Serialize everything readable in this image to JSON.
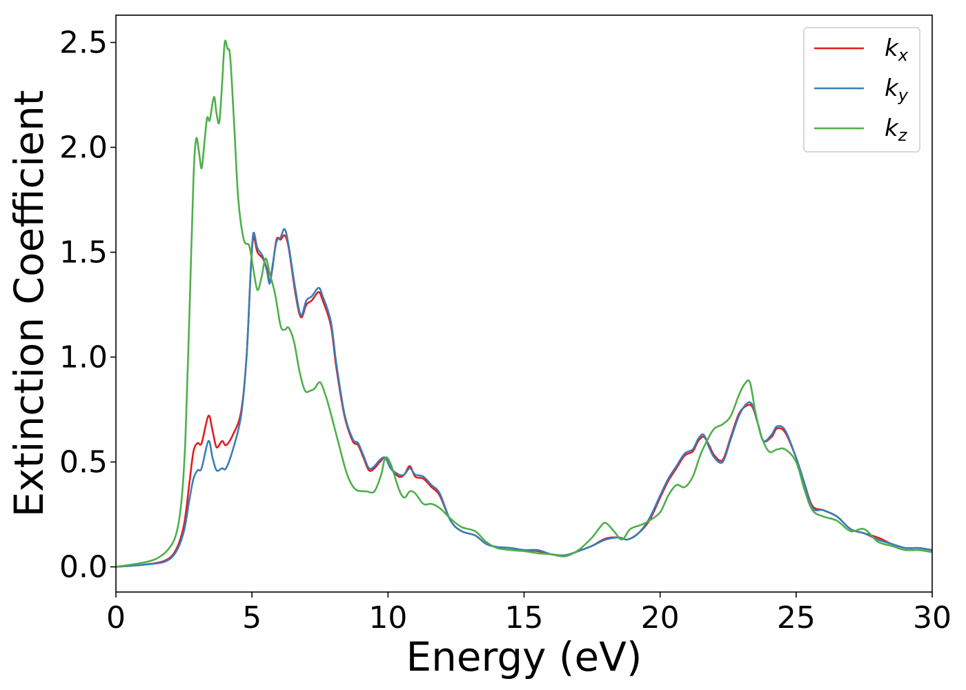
{
  "chart_data": {
    "type": "line",
    "xlabel": "Energy (eV)",
    "ylabel": "Extinction Coefficient",
    "xlim": [
      0,
      30
    ],
    "ylim": [
      -0.12,
      2.63
    ],
    "xticks": [
      0,
      5,
      10,
      15,
      20,
      25,
      30
    ],
    "xtick_labels": [
      "0",
      "5",
      "10",
      "15",
      "20",
      "25",
      "30"
    ],
    "yticks": [
      0.0,
      0.5,
      1.0,
      1.5,
      2.0,
      2.5
    ],
    "ytick_labels": [
      "0.0",
      "0.5",
      "1.0",
      "1.5",
      "2.0",
      "2.5"
    ],
    "grid": false,
    "legend_position": "top-right",
    "series": [
      {
        "name": "k_x",
        "legend_main": "k",
        "legend_sub": "x",
        "color": "#e41a1c",
        "points": [
          [
            0,
            0.0
          ],
          [
            1,
            0.01
          ],
          [
            1.8,
            0.03
          ],
          [
            2.2,
            0.08
          ],
          [
            2.5,
            0.2
          ],
          [
            2.7,
            0.4
          ],
          [
            2.85,
            0.55
          ],
          [
            3.0,
            0.59
          ],
          [
            3.15,
            0.59
          ],
          [
            3.4,
            0.72
          ],
          [
            3.55,
            0.65
          ],
          [
            3.7,
            0.57
          ],
          [
            3.9,
            0.6
          ],
          [
            4.05,
            0.58
          ],
          [
            4.3,
            0.63
          ],
          [
            4.6,
            0.74
          ],
          [
            4.8,
            1.0
          ],
          [
            4.95,
            1.4
          ],
          [
            5.05,
            1.57
          ],
          [
            5.2,
            1.5
          ],
          [
            5.4,
            1.47
          ],
          [
            5.55,
            1.42
          ],
          [
            5.65,
            1.36
          ],
          [
            5.75,
            1.42
          ],
          [
            5.9,
            1.56
          ],
          [
            6.05,
            1.56
          ],
          [
            6.2,
            1.58
          ],
          [
            6.35,
            1.52
          ],
          [
            6.6,
            1.3
          ],
          [
            6.8,
            1.19
          ],
          [
            7.0,
            1.25
          ],
          [
            7.2,
            1.27
          ],
          [
            7.45,
            1.31
          ],
          [
            7.6,
            1.27
          ],
          [
            7.9,
            1.15
          ],
          [
            8.1,
            0.95
          ],
          [
            8.4,
            0.72
          ],
          [
            8.7,
            0.6
          ],
          [
            8.9,
            0.58
          ],
          [
            9.1,
            0.52
          ],
          [
            9.3,
            0.46
          ],
          [
            9.5,
            0.47
          ],
          [
            9.7,
            0.5
          ],
          [
            9.9,
            0.52
          ],
          [
            10.1,
            0.47
          ],
          [
            10.4,
            0.43
          ],
          [
            10.6,
            0.44
          ],
          [
            10.8,
            0.48
          ],
          [
            11.0,
            0.43
          ],
          [
            11.3,
            0.42
          ],
          [
            11.6,
            0.38
          ],
          [
            11.9,
            0.34
          ],
          [
            12.3,
            0.22
          ],
          [
            12.7,
            0.17
          ],
          [
            13.2,
            0.15
          ],
          [
            13.6,
            0.11
          ],
          [
            14.0,
            0.095
          ],
          [
            14.5,
            0.09
          ],
          [
            15.0,
            0.08
          ],
          [
            15.5,
            0.075
          ],
          [
            16.0,
            0.06
          ],
          [
            16.5,
            0.055
          ],
          [
            17.0,
            0.075
          ],
          [
            17.5,
            0.1
          ],
          [
            18.0,
            0.135
          ],
          [
            18.5,
            0.14
          ],
          [
            18.8,
            0.13
          ],
          [
            19.2,
            0.16
          ],
          [
            19.6,
            0.22
          ],
          [
            20.0,
            0.33
          ],
          [
            20.3,
            0.41
          ],
          [
            20.6,
            0.47
          ],
          [
            20.9,
            0.53
          ],
          [
            21.2,
            0.55
          ],
          [
            21.4,
            0.6
          ],
          [
            21.6,
            0.62
          ],
          [
            21.8,
            0.58
          ],
          [
            22.0,
            0.53
          ],
          [
            22.3,
            0.51
          ],
          [
            22.6,
            0.62
          ],
          [
            22.9,
            0.73
          ],
          [
            23.2,
            0.77
          ],
          [
            23.4,
            0.76
          ],
          [
            23.6,
            0.68
          ],
          [
            23.8,
            0.6
          ],
          [
            24.1,
            0.62
          ],
          [
            24.3,
            0.66
          ],
          [
            24.6,
            0.64
          ],
          [
            25.0,
            0.52
          ],
          [
            25.3,
            0.4
          ],
          [
            25.6,
            0.29
          ],
          [
            26.0,
            0.27
          ],
          [
            26.5,
            0.24
          ],
          [
            27.0,
            0.18
          ],
          [
            27.5,
            0.16
          ],
          [
            28.0,
            0.14
          ],
          [
            28.5,
            0.11
          ],
          [
            29.0,
            0.09
          ],
          [
            29.5,
            0.09
          ],
          [
            30.0,
            0.08
          ]
        ]
      },
      {
        "name": "k_y",
        "legend_main": "k",
        "legend_sub": "y",
        "color": "#377eb8",
        "points": [
          [
            0,
            0.0
          ],
          [
            1,
            0.01
          ],
          [
            1.8,
            0.025
          ],
          [
            2.2,
            0.07
          ],
          [
            2.5,
            0.17
          ],
          [
            2.7,
            0.32
          ],
          [
            2.85,
            0.42
          ],
          [
            3.0,
            0.46
          ],
          [
            3.15,
            0.47
          ],
          [
            3.4,
            0.6
          ],
          [
            3.55,
            0.52
          ],
          [
            3.7,
            0.46
          ],
          [
            3.9,
            0.47
          ],
          [
            4.05,
            0.47
          ],
          [
            4.3,
            0.56
          ],
          [
            4.6,
            0.72
          ],
          [
            4.8,
            1.0
          ],
          [
            4.95,
            1.4
          ],
          [
            5.05,
            1.59
          ],
          [
            5.2,
            1.52
          ],
          [
            5.4,
            1.48
          ],
          [
            5.55,
            1.41
          ],
          [
            5.65,
            1.35
          ],
          [
            5.75,
            1.43
          ],
          [
            5.9,
            1.55
          ],
          [
            6.05,
            1.57
          ],
          [
            6.2,
            1.61
          ],
          [
            6.35,
            1.53
          ],
          [
            6.6,
            1.32
          ],
          [
            6.8,
            1.2
          ],
          [
            7.0,
            1.27
          ],
          [
            7.2,
            1.29
          ],
          [
            7.45,
            1.33
          ],
          [
            7.6,
            1.29
          ],
          [
            7.9,
            1.17
          ],
          [
            8.1,
            0.97
          ],
          [
            8.4,
            0.73
          ],
          [
            8.7,
            0.61
          ],
          [
            8.9,
            0.59
          ],
          [
            9.1,
            0.53
          ],
          [
            9.3,
            0.47
          ],
          [
            9.5,
            0.48
          ],
          [
            9.7,
            0.51
          ],
          [
            9.9,
            0.52
          ],
          [
            10.1,
            0.47
          ],
          [
            10.4,
            0.44
          ],
          [
            10.6,
            0.44
          ],
          [
            10.8,
            0.47
          ],
          [
            11.0,
            0.44
          ],
          [
            11.3,
            0.43
          ],
          [
            11.6,
            0.39
          ],
          [
            11.9,
            0.35
          ],
          [
            12.3,
            0.22
          ],
          [
            12.7,
            0.17
          ],
          [
            13.2,
            0.15
          ],
          [
            13.6,
            0.11
          ],
          [
            14.0,
            0.095
          ],
          [
            14.5,
            0.09
          ],
          [
            15.0,
            0.08
          ],
          [
            15.5,
            0.08
          ],
          [
            16.0,
            0.06
          ],
          [
            16.5,
            0.055
          ],
          [
            17.0,
            0.075
          ],
          [
            17.5,
            0.1
          ],
          [
            18.0,
            0.13
          ],
          [
            18.5,
            0.14
          ],
          [
            18.8,
            0.13
          ],
          [
            19.2,
            0.16
          ],
          [
            19.6,
            0.23
          ],
          [
            20.0,
            0.34
          ],
          [
            20.3,
            0.42
          ],
          [
            20.6,
            0.48
          ],
          [
            20.9,
            0.54
          ],
          [
            21.2,
            0.56
          ],
          [
            21.4,
            0.61
          ],
          [
            21.6,
            0.63
          ],
          [
            21.8,
            0.57
          ],
          [
            22.0,
            0.52
          ],
          [
            22.3,
            0.5
          ],
          [
            22.6,
            0.61
          ],
          [
            22.9,
            0.72
          ],
          [
            23.2,
            0.78
          ],
          [
            23.4,
            0.77
          ],
          [
            23.6,
            0.68
          ],
          [
            23.8,
            0.6
          ],
          [
            24.1,
            0.63
          ],
          [
            24.3,
            0.67
          ],
          [
            24.6,
            0.65
          ],
          [
            25.0,
            0.52
          ],
          [
            25.3,
            0.4
          ],
          [
            25.6,
            0.28
          ],
          [
            26.0,
            0.27
          ],
          [
            26.5,
            0.24
          ],
          [
            27.0,
            0.18
          ],
          [
            27.5,
            0.16
          ],
          [
            28.0,
            0.13
          ],
          [
            28.5,
            0.11
          ],
          [
            29.0,
            0.09
          ],
          [
            29.5,
            0.09
          ],
          [
            30.0,
            0.08
          ]
        ]
      },
      {
        "name": "k_z",
        "legend_main": "k",
        "legend_sub": "z",
        "color": "#4daf4a",
        "points": [
          [
            0,
            0.0
          ],
          [
            1,
            0.02
          ],
          [
            1.5,
            0.04
          ],
          [
            1.9,
            0.08
          ],
          [
            2.2,
            0.15
          ],
          [
            2.4,
            0.3
          ],
          [
            2.55,
            0.6
          ],
          [
            2.7,
            1.2
          ],
          [
            2.85,
            1.85
          ],
          [
            2.95,
            2.04
          ],
          [
            3.05,
            1.98
          ],
          [
            3.15,
            1.9
          ],
          [
            3.25,
            2.02
          ],
          [
            3.35,
            2.14
          ],
          [
            3.45,
            2.13
          ],
          [
            3.6,
            2.24
          ],
          [
            3.7,
            2.16
          ],
          [
            3.8,
            2.12
          ],
          [
            3.9,
            2.3
          ],
          [
            4.0,
            2.5
          ],
          [
            4.1,
            2.47
          ],
          [
            4.2,
            2.43
          ],
          [
            4.35,
            2.1
          ],
          [
            4.5,
            1.75
          ],
          [
            4.7,
            1.56
          ],
          [
            4.9,
            1.53
          ],
          [
            5.05,
            1.42
          ],
          [
            5.2,
            1.32
          ],
          [
            5.35,
            1.38
          ],
          [
            5.5,
            1.47
          ],
          [
            5.65,
            1.4
          ],
          [
            5.85,
            1.3
          ],
          [
            6.05,
            1.15
          ],
          [
            6.2,
            1.13
          ],
          [
            6.35,
            1.14
          ],
          [
            6.55,
            1.07
          ],
          [
            6.75,
            0.93
          ],
          [
            6.95,
            0.84
          ],
          [
            7.15,
            0.84
          ],
          [
            7.3,
            0.85
          ],
          [
            7.5,
            0.88
          ],
          [
            7.7,
            0.82
          ],
          [
            7.9,
            0.73
          ],
          [
            8.2,
            0.58
          ],
          [
            8.5,
            0.44
          ],
          [
            8.8,
            0.37
          ],
          [
            9.2,
            0.36
          ],
          [
            9.5,
            0.36
          ],
          [
            9.75,
            0.44
          ],
          [
            9.9,
            0.52
          ],
          [
            10.1,
            0.49
          ],
          [
            10.4,
            0.37
          ],
          [
            10.6,
            0.33
          ],
          [
            10.8,
            0.36
          ],
          [
            11.0,
            0.35
          ],
          [
            11.3,
            0.3
          ],
          [
            11.6,
            0.3
          ],
          [
            11.9,
            0.28
          ],
          [
            12.3,
            0.23
          ],
          [
            12.7,
            0.19
          ],
          [
            13.2,
            0.17
          ],
          [
            13.6,
            0.12
          ],
          [
            14.0,
            0.09
          ],
          [
            14.5,
            0.08
          ],
          [
            15.0,
            0.075
          ],
          [
            15.5,
            0.065
          ],
          [
            16.0,
            0.06
          ],
          [
            16.5,
            0.05
          ],
          [
            17.0,
            0.08
          ],
          [
            17.5,
            0.14
          ],
          [
            17.8,
            0.19
          ],
          [
            18.0,
            0.21
          ],
          [
            18.3,
            0.17
          ],
          [
            18.6,
            0.13
          ],
          [
            18.9,
            0.18
          ],
          [
            19.3,
            0.2
          ],
          [
            19.6,
            0.22
          ],
          [
            20.0,
            0.26
          ],
          [
            20.3,
            0.34
          ],
          [
            20.6,
            0.39
          ],
          [
            20.9,
            0.38
          ],
          [
            21.2,
            0.43
          ],
          [
            21.5,
            0.54
          ],
          [
            21.8,
            0.62
          ],
          [
            22.0,
            0.66
          ],
          [
            22.3,
            0.68
          ],
          [
            22.6,
            0.72
          ],
          [
            22.9,
            0.82
          ],
          [
            23.1,
            0.87
          ],
          [
            23.3,
            0.88
          ],
          [
            23.5,
            0.74
          ],
          [
            23.7,
            0.63
          ],
          [
            24.0,
            0.55
          ],
          [
            24.3,
            0.56
          ],
          [
            24.6,
            0.56
          ],
          [
            25.0,
            0.5
          ],
          [
            25.3,
            0.37
          ],
          [
            25.6,
            0.27
          ],
          [
            26.0,
            0.24
          ],
          [
            26.5,
            0.22
          ],
          [
            27.0,
            0.17
          ],
          [
            27.5,
            0.18
          ],
          [
            28.0,
            0.12
          ],
          [
            28.5,
            0.1
          ],
          [
            29.0,
            0.08
          ],
          [
            29.5,
            0.08
          ],
          [
            30.0,
            0.07
          ]
        ]
      }
    ]
  }
}
